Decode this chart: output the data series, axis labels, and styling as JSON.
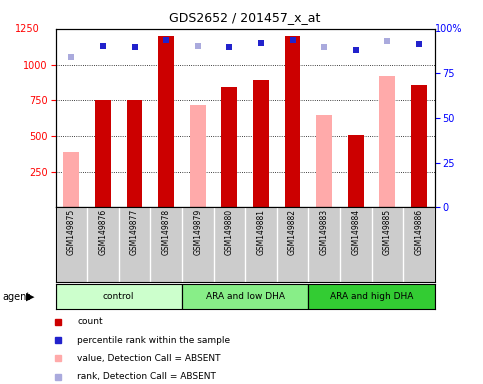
{
  "title": "GDS2652 / 201457_x_at",
  "samples": [
    "GSM149875",
    "GSM149876",
    "GSM149877",
    "GSM149878",
    "GSM149879",
    "GSM149880",
    "GSM149881",
    "GSM149882",
    "GSM149883",
    "GSM149884",
    "GSM149885",
    "GSM149886"
  ],
  "groups": [
    {
      "label": "control",
      "start": 0,
      "end": 4,
      "color": "#ccffcc"
    },
    {
      "label": "ARA and low DHA",
      "start": 4,
      "end": 8,
      "color": "#88ee88"
    },
    {
      "label": "ARA and high DHA",
      "start": 8,
      "end": 12,
      "color": "#33cc33"
    }
  ],
  "count_values": [
    null,
    750,
    750,
    1200,
    null,
    840,
    890,
    1200,
    null,
    510,
    null,
    860
  ],
  "value_absent": [
    390,
    null,
    null,
    null,
    720,
    null,
    null,
    null,
    650,
    null,
    920,
    null
  ],
  "percentile_rank": [
    null,
    1130,
    1120,
    1175,
    null,
    1125,
    1150,
    1175,
    null,
    1105,
    null,
    1145
  ],
  "rank_absent": [
    1055,
    null,
    null,
    null,
    1130,
    null,
    null,
    null,
    1120,
    null,
    1165,
    null
  ],
  "ylim_left": [
    0,
    1250
  ],
  "ylim_right": [
    0,
    100
  ],
  "yticks_left": [
    250,
    500,
    750,
    1000
  ],
  "yticks_right": [
    0,
    25,
    50,
    75
  ],
  "count_color": "#cc0000",
  "absent_value_color": "#ffaaaa",
  "percentile_color": "#2222cc",
  "absent_rank_color": "#aaaadd",
  "bg_color": "#cccccc",
  "legend": [
    {
      "label": "count",
      "color": "#cc0000"
    },
    {
      "label": "percentile rank within the sample",
      "color": "#2222cc"
    },
    {
      "label": "value, Detection Call = ABSENT",
      "color": "#ffaaaa"
    },
    {
      "label": "rank, Detection Call = ABSENT",
      "color": "#aaaadd"
    }
  ]
}
